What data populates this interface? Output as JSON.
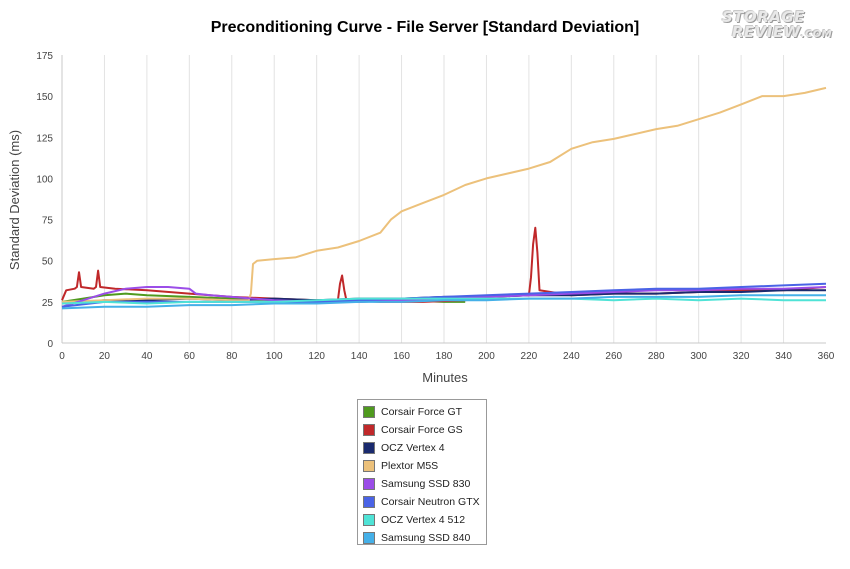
{
  "chart_data": {
    "type": "line",
    "title": "Preconditioning Curve - File Server [Standard Deviation]",
    "xlabel": "Minutes",
    "ylabel": "Standard Deviation (ms)",
    "xlim": [
      0,
      360
    ],
    "ylim": [
      0,
      175
    ],
    "xticks": [
      0,
      20,
      40,
      60,
      80,
      100,
      120,
      140,
      160,
      180,
      200,
      220,
      240,
      260,
      280,
      300,
      320,
      340,
      360
    ],
    "yticks": [
      0,
      25,
      50,
      75,
      100,
      125,
      150,
      175
    ],
    "grid": "vertical",
    "legend_position": "bottom",
    "series": [
      {
        "name": "Corsair Force GT",
        "color": "#4f9a1e",
        "points": [
          [
            0,
            25
          ],
          [
            10,
            27
          ],
          [
            20,
            29
          ],
          [
            30,
            30
          ],
          [
            40,
            29
          ],
          [
            60,
            28
          ],
          [
            80,
            27
          ],
          [
            100,
            26
          ],
          [
            120,
            26
          ],
          [
            140,
            25
          ],
          [
            160,
            26
          ],
          [
            180,
            25
          ],
          [
            190,
            25
          ]
        ]
      },
      {
        "name": "Corsair Force GS",
        "color": "#c0282a",
        "points": [
          [
            0,
            26
          ],
          [
            2,
            32
          ],
          [
            6,
            33
          ],
          [
            7,
            34
          ],
          [
            8,
            43
          ],
          [
            9,
            34
          ],
          [
            15,
            33
          ],
          [
            16,
            34
          ],
          [
            17,
            44
          ],
          [
            18,
            34
          ],
          [
            25,
            33
          ],
          [
            40,
            32
          ],
          [
            60,
            30
          ],
          [
            80,
            28
          ],
          [
            100,
            27
          ],
          [
            120,
            26
          ],
          [
            130,
            26
          ],
          [
            131,
            36
          ],
          [
            132,
            41
          ],
          [
            133,
            32
          ],
          [
            134,
            26
          ],
          [
            150,
            25
          ],
          [
            170,
            25
          ],
          [
            190,
            26
          ],
          [
            200,
            28
          ],
          [
            220,
            29
          ],
          [
            221,
            40
          ],
          [
            222,
            60
          ],
          [
            223,
            70
          ],
          [
            224,
            55
          ],
          [
            225,
            32
          ],
          [
            240,
            29
          ],
          [
            260,
            30
          ],
          [
            280,
            30
          ],
          [
            300,
            31
          ],
          [
            320,
            32
          ],
          [
            340,
            32
          ],
          [
            360,
            34
          ]
        ]
      },
      {
        "name": "OCZ Vertex 4",
        "color": "#1a2a6e",
        "points": [
          [
            0,
            24
          ],
          [
            20,
            26
          ],
          [
            40,
            26
          ],
          [
            60,
            27
          ],
          [
            80,
            26
          ],
          [
            100,
            27
          ],
          [
            120,
            26
          ],
          [
            140,
            27
          ],
          [
            160,
            27
          ],
          [
            180,
            28
          ],
          [
            200,
            28
          ],
          [
            220,
            29
          ],
          [
            240,
            29
          ],
          [
            260,
            30
          ],
          [
            280,
            30
          ],
          [
            300,
            31
          ],
          [
            320,
            31
          ],
          [
            340,
            32
          ],
          [
            360,
            32
          ]
        ]
      },
      {
        "name": "Plextor M5S",
        "color": "#ecc17b",
        "points": [
          [
            0,
            25
          ],
          [
            20,
            26
          ],
          [
            40,
            27
          ],
          [
            60,
            27
          ],
          [
            80,
            26
          ],
          [
            88,
            26
          ],
          [
            89,
            30
          ],
          [
            90,
            48
          ],
          [
            92,
            50
          ],
          [
            100,
            51
          ],
          [
            110,
            52
          ],
          [
            120,
            56
          ],
          [
            130,
            58
          ],
          [
            140,
            62
          ],
          [
            150,
            67
          ],
          [
            155,
            75
          ],
          [
            160,
            80
          ],
          [
            170,
            85
          ],
          [
            180,
            90
          ],
          [
            190,
            96
          ],
          [
            200,
            100
          ],
          [
            210,
            103
          ],
          [
            220,
            106
          ],
          [
            230,
            110
          ],
          [
            240,
            118
          ],
          [
            250,
            122
          ],
          [
            260,
            124
          ],
          [
            270,
            127
          ],
          [
            280,
            130
          ],
          [
            290,
            132
          ],
          [
            300,
            136
          ],
          [
            310,
            140
          ],
          [
            320,
            145
          ],
          [
            330,
            150
          ],
          [
            340,
            150
          ],
          [
            350,
            152
          ],
          [
            360,
            155
          ]
        ]
      },
      {
        "name": "Samsung SSD 830",
        "color": "#9b4de8",
        "points": [
          [
            0,
            22
          ],
          [
            10,
            26
          ],
          [
            20,
            30
          ],
          [
            30,
            33
          ],
          [
            40,
            34
          ],
          [
            50,
            34
          ],
          [
            60,
            33
          ],
          [
            63,
            30
          ],
          [
            70,
            29
          ],
          [
            80,
            28
          ],
          [
            90,
            27
          ],
          [
            100,
            26
          ],
          [
            120,
            25
          ],
          [
            140,
            25
          ],
          [
            160,
            26
          ],
          [
            180,
            27
          ],
          [
            200,
            28
          ],
          [
            220,
            29
          ],
          [
            240,
            30
          ],
          [
            260,
            31
          ],
          [
            280,
            32
          ],
          [
            300,
            32
          ],
          [
            320,
            33
          ],
          [
            340,
            33
          ],
          [
            360,
            34
          ]
        ]
      },
      {
        "name": "Corsair Neutron GTX",
        "color": "#4a63e6",
        "points": [
          [
            0,
            22
          ],
          [
            20,
            25
          ],
          [
            40,
            25
          ],
          [
            60,
            25
          ],
          [
            80,
            25
          ],
          [
            100,
            25
          ],
          [
            120,
            25
          ],
          [
            140,
            26
          ],
          [
            160,
            27
          ],
          [
            180,
            28
          ],
          [
            200,
            29
          ],
          [
            220,
            30
          ],
          [
            240,
            31
          ],
          [
            260,
            32
          ],
          [
            280,
            33
          ],
          [
            300,
            33
          ],
          [
            320,
            34
          ],
          [
            340,
            35
          ],
          [
            360,
            36
          ]
        ]
      },
      {
        "name": "OCZ Vertex 4 512",
        "color": "#4fe3d6",
        "points": [
          [
            0,
            24
          ],
          [
            20,
            25
          ],
          [
            40,
            24
          ],
          [
            60,
            25
          ],
          [
            80,
            25
          ],
          [
            100,
            25
          ],
          [
            120,
            26
          ],
          [
            140,
            27
          ],
          [
            160,
            27
          ],
          [
            180,
            27
          ],
          [
            200,
            27
          ],
          [
            220,
            27
          ],
          [
            240,
            27
          ],
          [
            260,
            26
          ],
          [
            280,
            27
          ],
          [
            300,
            26
          ],
          [
            320,
            27
          ],
          [
            340,
            26
          ],
          [
            360,
            26
          ]
        ]
      },
      {
        "name": "Samsung SSD 840",
        "color": "#45b0e8",
        "points": [
          [
            0,
            21
          ],
          [
            20,
            22
          ],
          [
            40,
            22
          ],
          [
            60,
            23
          ],
          [
            80,
            23
          ],
          [
            100,
            24
          ],
          [
            120,
            24
          ],
          [
            140,
            25
          ],
          [
            160,
            25
          ],
          [
            180,
            26
          ],
          [
            200,
            26
          ],
          [
            220,
            27
          ],
          [
            240,
            27
          ],
          [
            260,
            28
          ],
          [
            280,
            28
          ],
          [
            300,
            28
          ],
          [
            320,
            29
          ],
          [
            340,
            29
          ],
          [
            360,
            29
          ]
        ]
      }
    ]
  },
  "logo_text": {
    "line1": "STORAGE",
    "line2": "REVIEW",
    "suffix": ".COM"
  }
}
